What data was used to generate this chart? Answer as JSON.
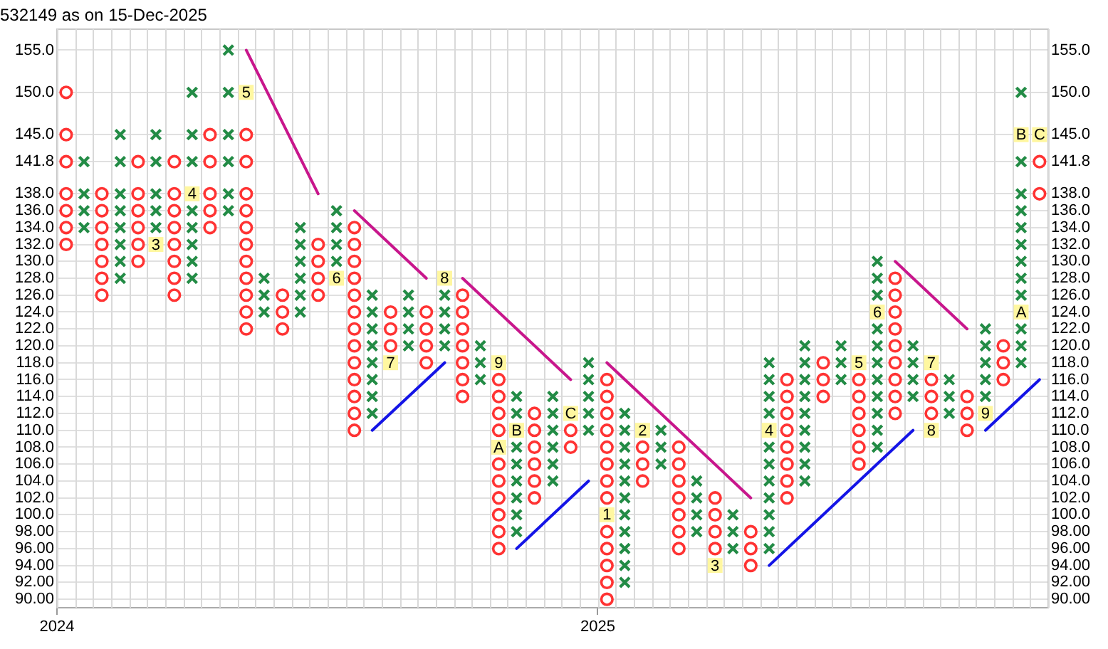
{
  "chart_data": {
    "type": "scatter",
    "title": "532149 as on 15-Dec-2025",
    "xlim": [
      2024,
      2025.833
    ],
    "xticks": [
      2024,
      2025
    ],
    "ylim": [
      89,
      157.5
    ],
    "yticks": [
      {
        "value": 90,
        "label": "90.00"
      },
      {
        "value": 92,
        "label": "92.00"
      },
      {
        "value": 94,
        "label": "94.00"
      },
      {
        "value": 96,
        "label": "96.00"
      },
      {
        "value": 98,
        "label": "98.00"
      },
      {
        "value": 100,
        "label": "100.0"
      },
      {
        "value": 102,
        "label": "102.0"
      },
      {
        "value": 104,
        "label": "104.0"
      },
      {
        "value": 106,
        "label": "106.0"
      },
      {
        "value": 108,
        "label": "108.0"
      },
      {
        "value": 110,
        "label": "110.0"
      },
      {
        "value": 112,
        "label": "112.0"
      },
      {
        "value": 114,
        "label": "114.0"
      },
      {
        "value": 116,
        "label": "116.0"
      },
      {
        "value": 118,
        "label": "118.0"
      },
      {
        "value": 120,
        "label": "120.0"
      },
      {
        "value": 122,
        "label": "122.0"
      },
      {
        "value": 124,
        "label": "124.0"
      },
      {
        "value": 126,
        "label": "126.0"
      },
      {
        "value": 128,
        "label": "128.0"
      },
      {
        "value": 130,
        "label": "130.0"
      },
      {
        "value": 132,
        "label": "132.0"
      },
      {
        "value": 134,
        "label": "134.0"
      },
      {
        "value": 136,
        "label": "136.0"
      },
      {
        "value": 138,
        "label": "138.0"
      },
      141.8,
      {
        "value": 145,
        "label": "145.0"
      },
      {
        "value": 150,
        "label": "150.0"
      },
      {
        "value": 155,
        "label": "155.0"
      }
    ],
    "y2lim": [
      89,
      157.5
    ],
    "y2ticks": [
      {
        "value": 90,
        "label": "90.00"
      },
      {
        "value": 92,
        "label": "92.00"
      },
      {
        "value": 94,
        "label": "94.00"
      },
      {
        "value": 96,
        "label": "96.00"
      },
      {
        "value": 98,
        "label": "98.00"
      },
      {
        "value": 100,
        "label": "100.0"
      },
      {
        "value": 102,
        "label": "102.0"
      },
      {
        "value": 104,
        "label": "104.0"
      },
      {
        "value": 106,
        "label": "106.0"
      },
      {
        "value": 108,
        "label": "108.0"
      },
      {
        "value": 110,
        "label": "110.0"
      },
      {
        "value": 112,
        "label": "112.0"
      },
      {
        "value": 114,
        "label": "114.0"
      },
      {
        "value": 116,
        "label": "116.0"
      },
      {
        "value": 118,
        "label": "118.0"
      },
      {
        "value": 120,
        "label": "120.0"
      },
      {
        "value": 122,
        "label": "122.0"
      },
      {
        "value": 124,
        "label": "124.0"
      },
      {
        "value": 126,
        "label": "126.0"
      },
      {
        "value": 128,
        "label": "128.0"
      },
      {
        "value": 130,
        "label": "130.0"
      },
      {
        "value": 132,
        "label": "132.0"
      },
      {
        "value": 134,
        "label": "134.0"
      },
      {
        "value": 136,
        "label": "136.0"
      },
      {
        "value": 138,
        "label": "138.0"
      },
      141.8,
      {
        "value": 145,
        "label": "145.0"
      },
      {
        "value": 150,
        "label": "150.0"
      },
      {
        "value": 155,
        "label": "155.0"
      }
    ],
    "grid": true,
    "series": [
      {
        "marker": "square",
        "color": "#fff7a0",
        "x": [
          2024.183,
          2024.25,
          2024.35,
          2024.517,
          2024.617,
          2024.717,
          2024.817,
          2024.817,
          2024.85,
          2024.95,
          2025.017,
          2025.083,
          2025.217,
          2025.317,
          2025.483,
          2025.517,
          2025.617,
          2025.617,
          2025.717,
          2025.783,
          2025.783,
          2025.817
        ],
        "values": [
          132,
          138,
          150,
          128,
          118,
          128,
          118,
          108,
          110,
          112,
          100,
          110,
          94,
          110,
          118,
          124,
          118,
          110,
          112,
          124,
          145,
          145
        ]
      },
      {
        "marker": "cross",
        "color": "#228b45",
        "x": [
          2024.05,
          2024.05,
          2024.05,
          2024.05,
          2024.117,
          2024.117,
          2024.117,
          2024.117,
          2024.117,
          2024.117,
          2024.117,
          2024.117,
          2024.183,
          2024.183,
          2024.183,
          2024.183,
          2024.183,
          2024.25,
          2024.25,
          2024.25,
          2024.25,
          2024.25,
          2024.25,
          2024.25,
          2024.25,
          2024.317,
          2024.317,
          2024.317,
          2024.317,
          2024.317,
          2024.317,
          2024.383,
          2024.383,
          2024.383,
          2024.45,
          2024.45,
          2024.45,
          2024.45,
          2024.45,
          2024.45,
          2024.517,
          2024.517,
          2024.517,
          2024.517,
          2024.583,
          2024.583,
          2024.583,
          2024.583,
          2024.583,
          2024.583,
          2024.583,
          2024.583,
          2024.65,
          2024.65,
          2024.65,
          2024.65,
          2024.717,
          2024.717,
          2024.717,
          2024.717,
          2024.783,
          2024.783,
          2024.783,
          2024.85,
          2024.85,
          2024.85,
          2024.85,
          2024.85,
          2024.85,
          2024.85,
          2024.85,
          2024.917,
          2024.917,
          2024.917,
          2024.917,
          2024.917,
          2024.917,
          2024.983,
          2024.983,
          2024.983,
          2024.983,
          2024.983,
          2025.05,
          2025.05,
          2025.05,
          2025.05,
          2025.05,
          2025.05,
          2025.05,
          2025.05,
          2025.05,
          2025.05,
          2025.05,
          2025.117,
          2025.117,
          2025.117,
          2025.183,
          2025.183,
          2025.183,
          2025.183,
          2025.25,
          2025.25,
          2025.25,
          2025.317,
          2025.317,
          2025.317,
          2025.317,
          2025.317,
          2025.317,
          2025.317,
          2025.317,
          2025.317,
          2025.317,
          2025.317,
          2025.383,
          2025.383,
          2025.383,
          2025.383,
          2025.383,
          2025.383,
          2025.383,
          2025.383,
          2025.383,
          2025.45,
          2025.45,
          2025.45,
          2025.517,
          2025.517,
          2025.517,
          2025.517,
          2025.517,
          2025.517,
          2025.517,
          2025.517,
          2025.517,
          2025.517,
          2025.517,
          2025.583,
          2025.583,
          2025.583,
          2025.583,
          2025.65,
          2025.65,
          2025.65,
          2025.717,
          2025.717,
          2025.717,
          2025.717,
          2025.717,
          2025.783,
          2025.783,
          2025.783,
          2025.783,
          2025.783,
          2025.783,
          2025.783,
          2025.783,
          2025.783,
          2025.783,
          2025.783,
          2025.783
        ],
        "values": [
          134,
          136,
          138,
          141.8,
          128,
          130,
          132,
          134,
          136,
          138,
          141.8,
          145,
          134,
          136,
          138,
          141.8,
          145,
          128,
          130,
          132,
          134,
          136,
          141.8,
          145,
          150,
          136,
          138,
          141.8,
          145,
          150,
          155,
          124,
          126,
          128,
          124,
          126,
          128,
          130,
          132,
          134,
          130,
          132,
          134,
          136,
          112,
          114,
          116,
          118,
          120,
          122,
          124,
          126,
          120,
          122,
          124,
          126,
          120,
          122,
          124,
          126,
          116,
          118,
          120,
          98,
          100,
          102,
          104,
          106,
          108,
          112,
          114,
          104,
          106,
          108,
          110,
          112,
          114,
          110,
          112,
          114,
          116,
          118,
          92,
          94,
          96,
          98,
          100,
          102,
          104,
          106,
          108,
          110,
          112,
          106,
          108,
          110,
          98,
          100,
          102,
          104,
          96,
          98,
          100,
          96,
          98,
          100,
          102,
          104,
          106,
          108,
          112,
          114,
          116,
          118,
          104,
          106,
          108,
          110,
          112,
          114,
          116,
          118,
          120,
          116,
          118,
          120,
          108,
          110,
          112,
          114,
          116,
          118,
          120,
          122,
          126,
          128,
          130,
          114,
          116,
          118,
          120,
          112,
          114,
          116,
          114,
          116,
          118,
          120,
          122,
          118,
          120,
          122,
          126,
          128,
          130,
          132,
          134,
          136,
          138,
          141.8,
          150
        ]
      },
      {
        "marker": "circle",
        "color": "#ff3333",
        "x": [
          2024.017,
          2024.017,
          2024.017,
          2024.017,
          2024.017,
          2024.017,
          2024.017,
          2024.083,
          2024.083,
          2024.083,
          2024.083,
          2024.083,
          2024.083,
          2024.083,
          2024.15,
          2024.15,
          2024.15,
          2024.15,
          2024.15,
          2024.15,
          2024.217,
          2024.217,
          2024.217,
          2024.217,
          2024.217,
          2024.217,
          2024.217,
          2024.217,
          2024.283,
          2024.283,
          2024.283,
          2024.283,
          2024.283,
          2024.35,
          2024.35,
          2024.35,
          2024.35,
          2024.35,
          2024.35,
          2024.35,
          2024.35,
          2024.35,
          2024.35,
          2024.35,
          2024.417,
          2024.417,
          2024.417,
          2024.483,
          2024.483,
          2024.483,
          2024.483,
          2024.55,
          2024.55,
          2024.55,
          2024.55,
          2024.55,
          2024.55,
          2024.55,
          2024.55,
          2024.55,
          2024.55,
          2024.55,
          2024.55,
          2024.55,
          2024.617,
          2024.617,
          2024.617,
          2024.683,
          2024.683,
          2024.683,
          2024.683,
          2024.75,
          2024.75,
          2024.75,
          2024.75,
          2024.75,
          2024.75,
          2024.75,
          2024.817,
          2024.817,
          2024.817,
          2024.817,
          2024.817,
          2024.817,
          2024.817,
          2024.817,
          2024.817,
          2024.817,
          2024.883,
          2024.883,
          2024.883,
          2024.883,
          2024.883,
          2024.883,
          2024.95,
          2024.95,
          2025.017,
          2025.017,
          2025.017,
          2025.017,
          2025.017,
          2025.017,
          2025.017,
          2025.017,
          2025.017,
          2025.017,
          2025.017,
          2025.017,
          2025.017,
          2025.083,
          2025.083,
          2025.083,
          2025.15,
          2025.15,
          2025.15,
          2025.15,
          2025.15,
          2025.15,
          2025.15,
          2025.217,
          2025.217,
          2025.217,
          2025.217,
          2025.283,
          2025.283,
          2025.283,
          2025.35,
          2025.35,
          2025.35,
          2025.35,
          2025.35,
          2025.35,
          2025.35,
          2025.35,
          2025.417,
          2025.417,
          2025.417,
          2025.483,
          2025.483,
          2025.483,
          2025.483,
          2025.483,
          2025.483,
          2025.55,
          2025.55,
          2025.55,
          2025.55,
          2025.55,
          2025.55,
          2025.55,
          2025.55,
          2025.55,
          2025.617,
          2025.617,
          2025.617,
          2025.683,
          2025.683,
          2025.683,
          2025.75,
          2025.75,
          2025.75,
          2025.817,
          2025.817
        ],
        "values": [
          150,
          145,
          141.8,
          138,
          136,
          134,
          132,
          138,
          136,
          134,
          132,
          130,
          128,
          126,
          141.8,
          138,
          136,
          134,
          132,
          130,
          141.8,
          138,
          136,
          134,
          132,
          130,
          128,
          126,
          145,
          141.8,
          138,
          136,
          134,
          145,
          141.8,
          138,
          136,
          134,
          132,
          130,
          128,
          126,
          124,
          122,
          126,
          124,
          122,
          132,
          130,
          128,
          126,
          134,
          132,
          130,
          128,
          126,
          124,
          122,
          120,
          118,
          116,
          114,
          112,
          110,
          124,
          122,
          120,
          124,
          122,
          120,
          118,
          126,
          124,
          122,
          120,
          118,
          116,
          114,
          116,
          114,
          112,
          110,
          106,
          104,
          102,
          100,
          98,
          96,
          112,
          110,
          108,
          106,
          104,
          102,
          110,
          108,
          116,
          114,
          112,
          110,
          108,
          106,
          104,
          102,
          98,
          96,
          94,
          92,
          90,
          108,
          106,
          104,
          108,
          106,
          104,
          102,
          100,
          98,
          96,
          102,
          100,
          98,
          96,
          98,
          96,
          94,
          116,
          114,
          112,
          110,
          108,
          106,
          104,
          102,
          118,
          116,
          114,
          116,
          114,
          112,
          110,
          108,
          106,
          128,
          126,
          124,
          122,
          120,
          118,
          116,
          114,
          112,
          116,
          114,
          112,
          114,
          112,
          110,
          120,
          118,
          116,
          141.8,
          138
        ]
      },
      {
        "type": "line",
        "color": "#c8168c",
        "x": [
          2024.35,
          2024.483
        ],
        "values": [
          155,
          138
        ]
      },
      {
        "type": "line",
        "color": "#c8168c",
        "x": [
          2024.55,
          2024.683
        ],
        "values": [
          136,
          128
        ]
      },
      {
        "type": "line",
        "color": "#c8168c",
        "x": [
          2024.75,
          2024.95
        ],
        "values": [
          128,
          116
        ]
      },
      {
        "type": "line",
        "color": "#c8168c",
        "x": [
          2025.017,
          2025.283
        ],
        "values": [
          118,
          102
        ]
      },
      {
        "type": "line",
        "color": "#c8168c",
        "x": [
          2025.55,
          2025.683
        ],
        "values": [
          130,
          122
        ]
      },
      {
        "type": "line",
        "color": "#1414e6",
        "x": [
          2024.583,
          2024.717
        ],
        "values": [
          110,
          118
        ]
      },
      {
        "type": "line",
        "color": "#1414e6",
        "x": [
          2024.85,
          2024.983
        ],
        "values": [
          96,
          104
        ]
      },
      {
        "type": "line",
        "color": "#1414e6",
        "x": [
          2025.317,
          2025.583
        ],
        "values": [
          94,
          110
        ]
      },
      {
        "type": "line",
        "color": "#1414e6",
        "x": [
          2025.717,
          2025.817
        ],
        "values": [
          110,
          116
        ]
      }
    ],
    "annotations": [
      {
        "text": "3",
        "x": 2024.183,
        "y": 132
      },
      {
        "text": "4",
        "x": 2024.25,
        "y": 138
      },
      {
        "text": "5",
        "x": 2024.35,
        "y": 150
      },
      {
        "text": "6",
        "x": 2024.517,
        "y": 128
      },
      {
        "text": "7",
        "x": 2024.617,
        "y": 118
      },
      {
        "text": "8",
        "x": 2024.717,
        "y": 128
      },
      {
        "text": "9",
        "x": 2024.817,
        "y": 118
      },
      {
        "text": "A",
        "x": 2024.817,
        "y": 108
      },
      {
        "text": "B",
        "x": 2024.85,
        "y": 110
      },
      {
        "text": "C",
        "x": 2024.95,
        "y": 112
      },
      {
        "text": "1",
        "x": 2025.017,
        "y": 100
      },
      {
        "text": "2",
        "x": 2025.083,
        "y": 110
      },
      {
        "text": "3",
        "x": 2025.217,
        "y": 94
      },
      {
        "text": "4",
        "x": 2025.317,
        "y": 110
      },
      {
        "text": "5",
        "x": 2025.483,
        "y": 118
      },
      {
        "text": "6",
        "x": 2025.517,
        "y": 124
      },
      {
        "text": "7",
        "x": 2025.617,
        "y": 118
      },
      {
        "text": "8",
        "x": 2025.617,
        "y": 110
      },
      {
        "text": "9",
        "x": 2025.717,
        "y": 112
      },
      {
        "text": "A",
        "x": 2025.783,
        "y": 124
      },
      {
        "text": "B",
        "x": 2025.783,
        "y": 145
      },
      {
        "text": "C",
        "x": 2025.817,
        "y": 145
      }
    ]
  }
}
